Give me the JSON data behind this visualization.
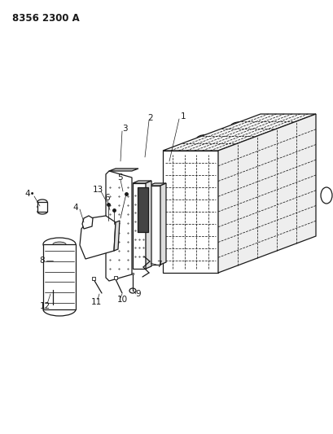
{
  "title": "8356 2300 A",
  "background_color": "#ffffff",
  "line_color": "#1a1a1a",
  "figsize": [
    4.1,
    5.33
  ],
  "dpi": 100,
  "title_fontsize": 8.5,
  "label_fontsize": 7.5
}
